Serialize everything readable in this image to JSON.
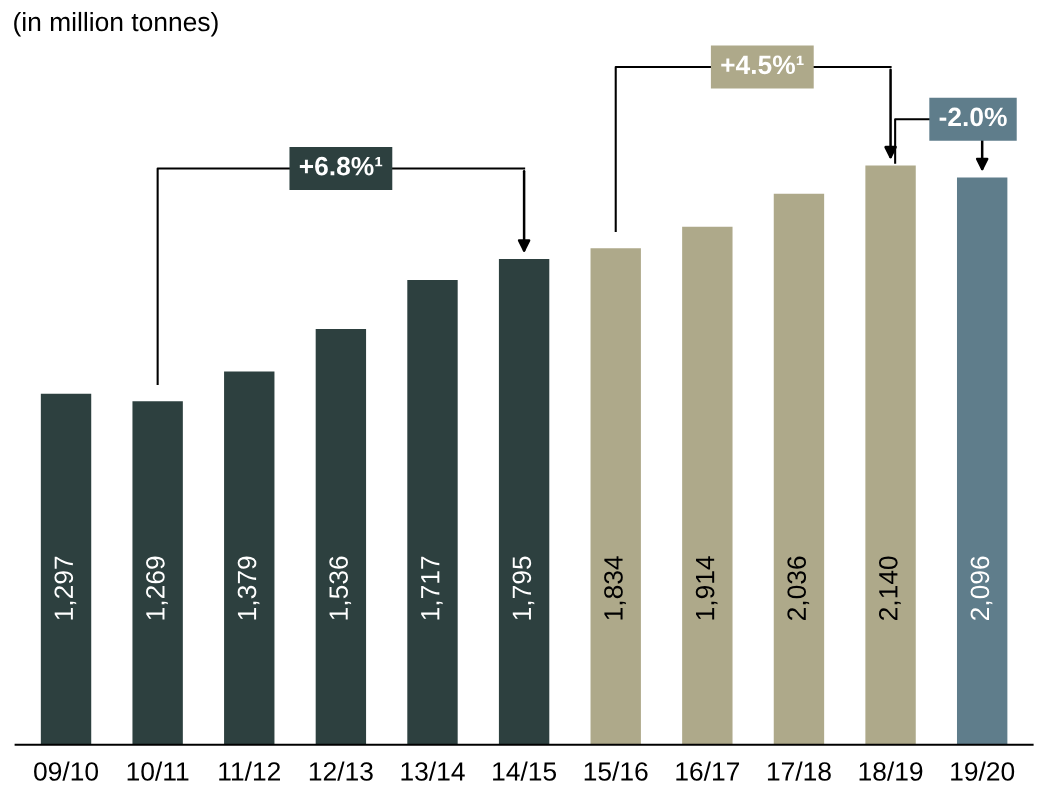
{
  "chart_data": {
    "type": "bar",
    "title": "(in million tonnes)",
    "categories": [
      "09/10",
      "10/11",
      "11/12",
      "12/13",
      "13/14",
      "14/15",
      "15/16",
      "16/17",
      "17/18",
      "18/19",
      "19/20"
    ],
    "values": [
      1297,
      1269,
      1379,
      1536,
      1717,
      1795,
      1834,
      1914,
      2036,
      2140,
      2096
    ],
    "value_labels": [
      "1,297",
      "1,269",
      "1,379",
      "1,536",
      "1,717",
      "1,795",
      "1,834",
      "1,914",
      "2,036",
      "2,140",
      "2,096"
    ],
    "colors": [
      "#2d403f",
      "#2d403f",
      "#2d403f",
      "#2d403f",
      "#2d403f",
      "#2d403f",
      "#aea98a",
      "#aea98a",
      "#aea98a",
      "#aea98a",
      "#5f7d8b"
    ],
    "grid": false,
    "annotations": [
      "+6.8%¹",
      "+4.5%¹",
      "-2.0%"
    ]
  }
}
